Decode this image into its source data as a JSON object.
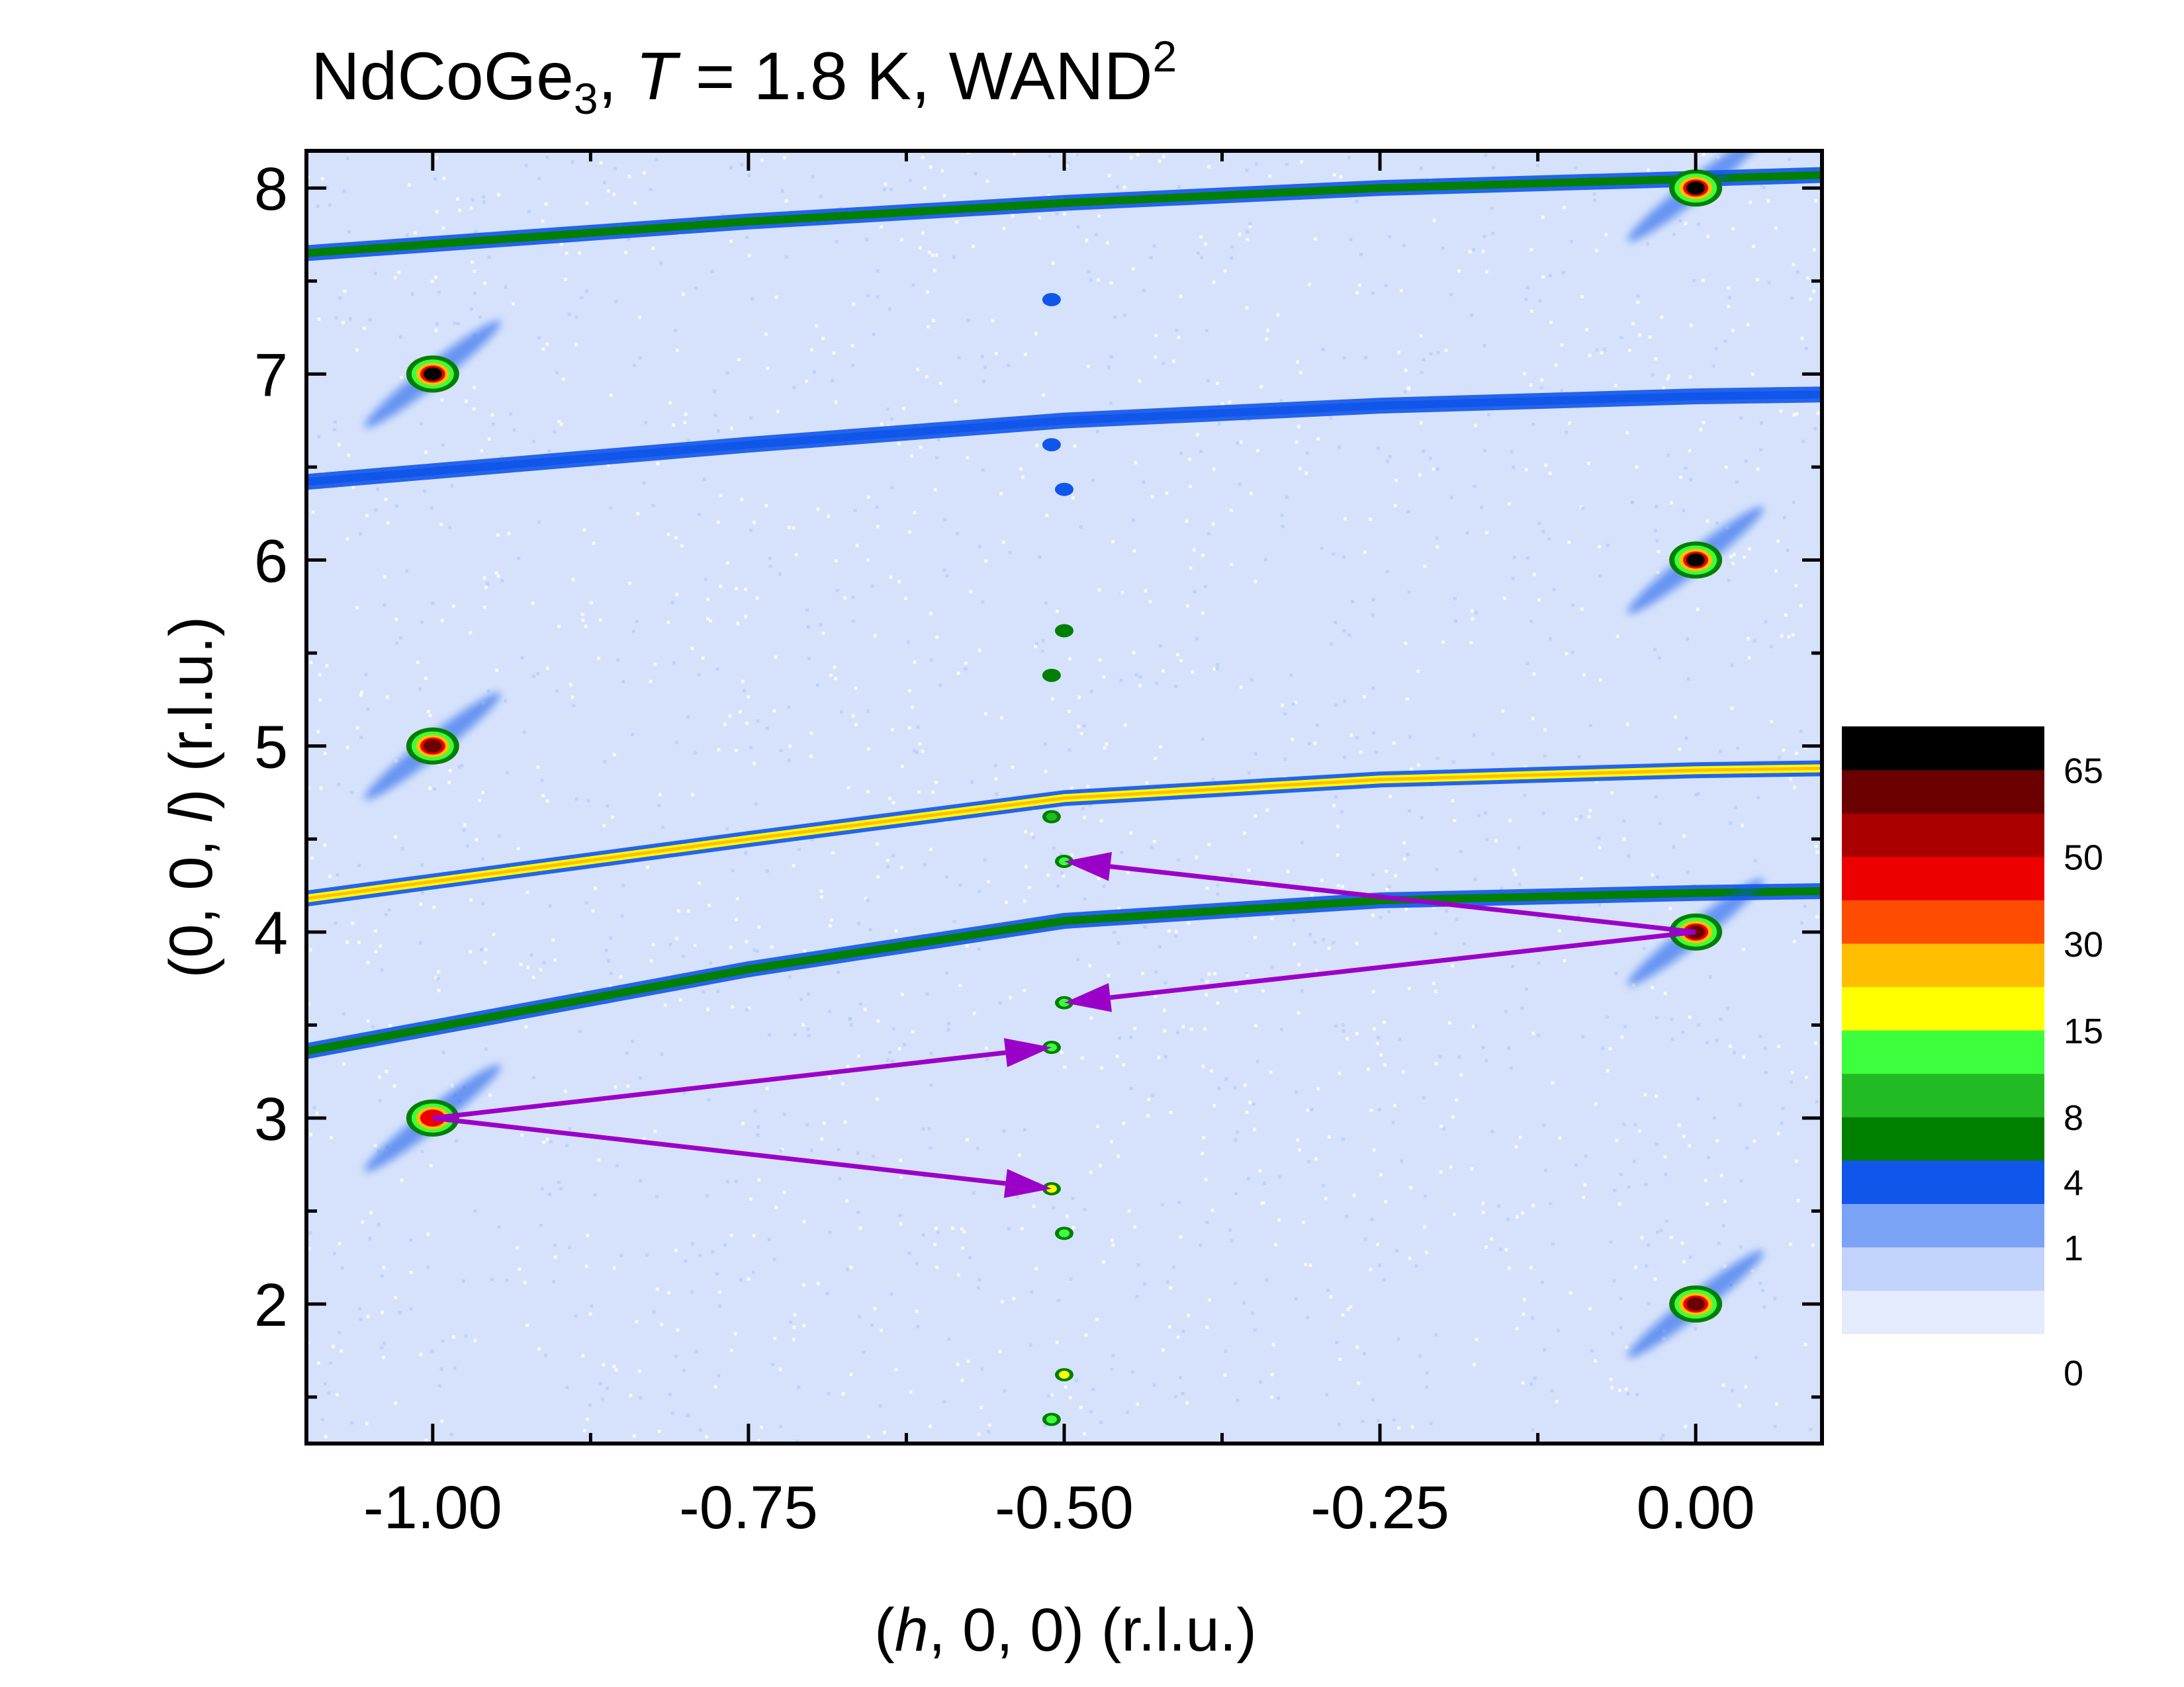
{
  "chart_data": {
    "type": "heatmap",
    "title": {
      "compound_base": "NdCoGe",
      "compound_subscript": "3",
      "sep": ", ",
      "temp_symbol": "T",
      "temp_rest": " = 1.8 K, WAND",
      "superscript": "2"
    },
    "xlabel": {
      "open": "(",
      "var": "h",
      "rest": ", 0, 0) (r.l.u.)"
    },
    "ylabel": {
      "open": "(0, 0, ",
      "var": "l",
      "rest": ") (r.l.u.)"
    },
    "xlim": [
      -1.1,
      0.1
    ],
    "ylim": [
      1.25,
      8.2
    ],
    "x_ticks": [
      {
        "v": -1.0,
        "label": "-1.00"
      },
      {
        "v": -0.75,
        "label": "-0.75"
      },
      {
        "v": -0.5,
        "label": "-0.50"
      },
      {
        "v": -0.25,
        "label": "-0.25"
      },
      {
        "v": 0.0,
        "label": "0.00"
      }
    ],
    "y_ticks": [
      {
        "v": 2,
        "label": "2"
      },
      {
        "v": 3,
        "label": "3"
      },
      {
        "v": 4,
        "label": "4"
      },
      {
        "v": 5,
        "label": "5"
      },
      {
        "v": 6,
        "label": "6"
      },
      {
        "v": 7,
        "label": "7"
      },
      {
        "v": 8,
        "label": "8"
      }
    ],
    "background_color": "#d6e2fb",
    "colorbar": {
      "colors": [
        "#e3ebfd",
        "#c2d3fb",
        "#7aa3f5",
        "#1156ea",
        "#007f00",
        "#23bb23",
        "#3dff3d",
        "#ffff00",
        "#ffbf00",
        "#ff4d00",
        "#ee0000",
        "#aa0000",
        "#6a0000",
        "#000000"
      ],
      "labels": [
        {
          "text": "0",
          "level": 0.0
        },
        {
          "text": "1",
          "level": 2.0
        },
        {
          "text": "4",
          "level": 3.5
        },
        {
          "text": "8",
          "level": 5.0
        },
        {
          "text": "15",
          "level": 7.0
        },
        {
          "text": "30",
          "level": 9.0
        },
        {
          "text": "50",
          "level": 11.0
        },
        {
          "text": "65",
          "level": 13.0
        }
      ]
    },
    "powder_rings": [
      {
        "points": [
          [
            -1.1,
            7.65
          ],
          [
            -0.75,
            7.82
          ],
          [
            -0.5,
            7.92
          ],
          [
            -0.25,
            8.0
          ],
          [
            0.0,
            8.05
          ],
          [
            0.1,
            8.07
          ]
        ],
        "level": 4
      },
      {
        "points": [
          [
            -1.1,
            6.42
          ],
          [
            -0.75,
            6.62
          ],
          [
            -0.5,
            6.75
          ],
          [
            -0.25,
            6.83
          ],
          [
            0.0,
            6.88
          ],
          [
            0.1,
            6.89
          ]
        ],
        "level": 3
      },
      {
        "points": [
          [
            -1.1,
            4.18
          ],
          [
            -0.75,
            4.5
          ],
          [
            -0.5,
            4.72
          ],
          [
            -0.25,
            4.82
          ],
          [
            0.0,
            4.87
          ],
          [
            0.1,
            4.88
          ]
        ],
        "level": 7
      },
      {
        "points": [
          [
            -1.1,
            3.36
          ],
          [
            -0.75,
            3.8
          ],
          [
            -0.5,
            4.06
          ],
          [
            -0.25,
            4.17
          ],
          [
            0.0,
            4.21
          ],
          [
            0.1,
            4.22
          ]
        ],
        "level": 4
      }
    ],
    "nuclear_peaks": [
      {
        "h": 0.0,
        "l": 8.0,
        "level": 13
      },
      {
        "h": -1.0,
        "l": 7.0,
        "level": 13
      },
      {
        "h": 0.0,
        "l": 6.0,
        "level": 13
      },
      {
        "h": -1.0,
        "l": 5.0,
        "level": 12
      },
      {
        "h": 0.0,
        "l": 4.0,
        "level": 12
      },
      {
        "h": -1.0,
        "l": 3.0,
        "level": 10
      },
      {
        "h": 0.0,
        "l": 2.0,
        "level": 12
      }
    ],
    "magnetic_peaks": [
      {
        "h": -0.51,
        "l": 7.4,
        "level": 3
      },
      {
        "h": -0.51,
        "l": 6.62,
        "level": 3
      },
      {
        "h": -0.5,
        "l": 6.38,
        "level": 3
      },
      {
        "h": -0.5,
        "l": 5.62,
        "level": 4
      },
      {
        "h": -0.51,
        "l": 5.38,
        "level": 4
      },
      {
        "h": -0.51,
        "l": 4.62,
        "level": 5
      },
      {
        "h": -0.5,
        "l": 4.38,
        "level": 6
      },
      {
        "h": -0.5,
        "l": 3.62,
        "level": 6
      },
      {
        "h": -0.51,
        "l": 3.38,
        "level": 6
      },
      {
        "h": -0.51,
        "l": 2.62,
        "level": 7
      },
      {
        "h": -0.5,
        "l": 2.38,
        "level": 6
      },
      {
        "h": -0.5,
        "l": 1.62,
        "level": 7
      },
      {
        "h": -0.51,
        "l": 1.38,
        "level": 6
      }
    ],
    "annotations": {
      "arrow_color": "#9b00c8",
      "arrows": [
        {
          "from": [
            0.0,
            4.0
          ],
          "to": [
            -0.5,
            4.38
          ]
        },
        {
          "from": [
            0.0,
            4.0
          ],
          "to": [
            -0.5,
            3.62
          ]
        },
        {
          "from": [
            -1.0,
            3.0
          ],
          "to": [
            -0.51,
            3.38
          ]
        },
        {
          "from": [
            -1.0,
            3.0
          ],
          "to": [
            -0.51,
            2.62
          ]
        }
      ]
    }
  }
}
